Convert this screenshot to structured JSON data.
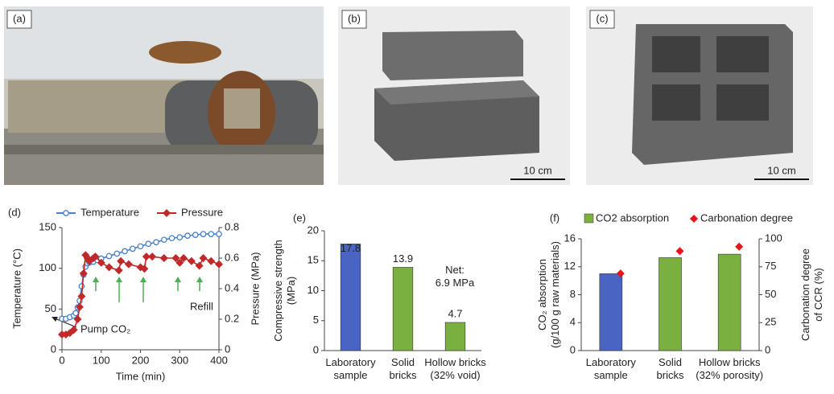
{
  "photos": [
    {
      "label": "(a)"
    },
    {
      "label": "(b)",
      "scale": "10 cm"
    },
    {
      "label": "(c)",
      "scale": "10 cm"
    }
  ],
  "chart_data": [
    {
      "type": "line",
      "panel": "(d)",
      "xlabel": "Time (min)",
      "ylabel": "Temperature (°C)",
      "y2label": "Pressure (MPa)",
      "xlim": [
        0,
        400
      ],
      "xticks": [
        0,
        100,
        200,
        300,
        400
      ],
      "ylim": [
        0,
        150
      ],
      "yticks": [
        0,
        50,
        100,
        150
      ],
      "y2lim": [
        0,
        0.8
      ],
      "y2ticks": [
        0,
        0.2,
        0.4,
        0.6,
        0.8
      ],
      "series": [
        {
          "name": "Temperature",
          "color": "#4a7fc9",
          "marker": "circle",
          "x": [
            0,
            10,
            20,
            30,
            35,
            40,
            45,
            50,
            55,
            60,
            65,
            70,
            80,
            90,
            100,
            120,
            140,
            160,
            180,
            200,
            220,
            240,
            260,
            280,
            300,
            320,
            340,
            360,
            380,
            400
          ],
          "values": [
            38,
            38,
            40,
            42,
            45,
            52,
            60,
            78,
            92,
            102,
            106,
            107,
            108,
            110,
            112,
            115,
            118,
            121,
            124,
            127,
            130,
            132,
            135,
            137,
            138,
            140,
            141,
            142,
            142,
            142
          ]
        },
        {
          "name": "Pressure",
          "color": "#c0282a",
          "marker": "diamond",
          "axis": "y2",
          "x": [
            0,
            10,
            20,
            30,
            40,
            45,
            50,
            55,
            60,
            65,
            70,
            80,
            85,
            100,
            120,
            145,
            150,
            170,
            200,
            210,
            215,
            230,
            260,
            290,
            300,
            310,
            330,
            350,
            360,
            380,
            400
          ],
          "values": [
            0.1,
            0.1,
            0.11,
            0.13,
            0.2,
            0.28,
            0.35,
            0.5,
            0.62,
            0.6,
            0.58,
            0.6,
            0.61,
            0.57,
            0.54,
            0.52,
            0.58,
            0.56,
            0.54,
            0.53,
            0.61,
            0.61,
            0.6,
            0.6,
            0.57,
            0.6,
            0.58,
            0.55,
            0.6,
            0.58,
            0.56
          ]
        }
      ],
      "annotations": [
        "Pump CO₂",
        "Refill"
      ]
    },
    {
      "type": "bar",
      "panel": "(e)",
      "ylabel": "Compressive strength\n(MPa)",
      "ylim": [
        0,
        20
      ],
      "yticks": [
        0,
        5,
        10,
        15,
        20
      ],
      "categories": [
        "Laboratory\nsample",
        "Solid\nbricks",
        "Hollow bricks\n(32% void)"
      ],
      "series": [
        {
          "values": [
            17.8,
            13.9,
            4.7
          ],
          "colors": [
            "#4a64c4",
            "#7ab040",
            "#7ab040"
          ]
        }
      ],
      "annotations": [
        "Net:\n6.9 MPa"
      ]
    },
    {
      "type": "bar",
      "panel": "(f)",
      "ylabel": "CO₂ absorption\n(g/100 g raw materials)",
      "y2label": "Carbonation degree\nof CCR (%)",
      "ylim": [
        0,
        16
      ],
      "yticks": [
        0,
        4,
        8,
        12,
        16
      ],
      "y2lim": [
        0,
        100
      ],
      "y2ticks": [
        0,
        25,
        50,
        75,
        100
      ],
      "categories": [
        "Laboratory\nsample",
        "Solid\nbricks",
        "Hollow bricks\n(32% porosity)"
      ],
      "series": [
        {
          "name": "CO2 absorption",
          "color": "#7ab040",
          "values": [
            11,
            13.3,
            13.8
          ],
          "colors": [
            "#4a64c4",
            "#7ab040",
            "#7ab040"
          ]
        },
        {
          "name": "Carbonation degree",
          "color": "#e8141a",
          "marker": "diamond",
          "axis": "y2",
          "values": [
            69,
            89,
            93
          ]
        }
      ]
    }
  ]
}
